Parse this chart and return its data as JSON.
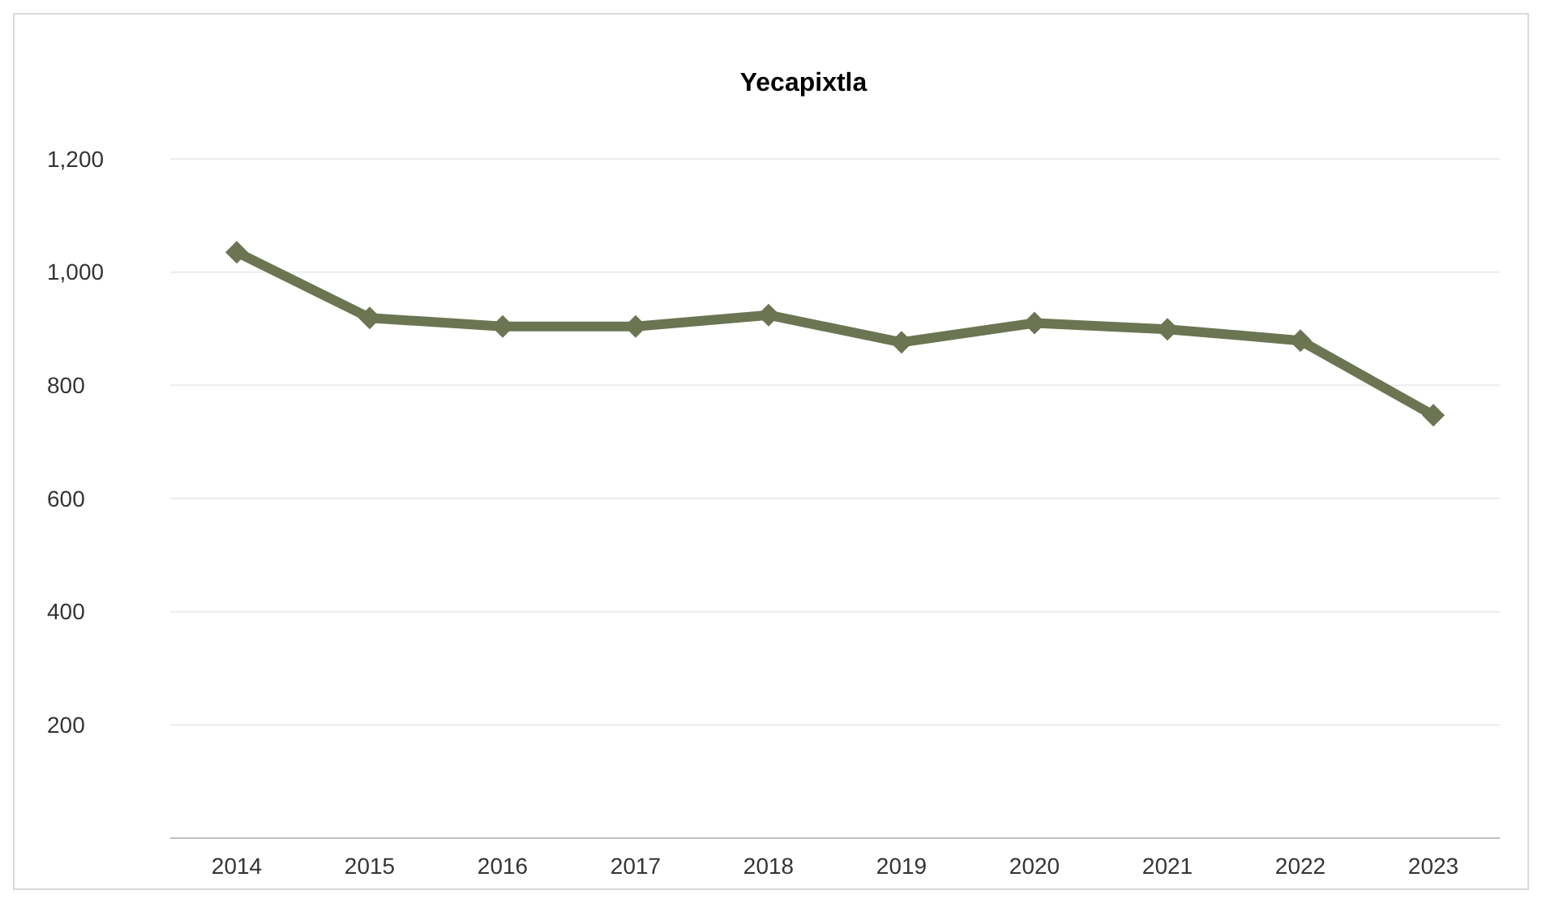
{
  "chart_data": {
    "type": "line",
    "title": "Yecapixtla",
    "categories": [
      "2014",
      "2015",
      "2016",
      "2017",
      "2018",
      "2019",
      "2020",
      "2021",
      "2022",
      "2023"
    ],
    "series": [
      {
        "color": "#6b7552",
        "values": [
          1035,
          919,
          904,
          904,
          924,
          876,
          910,
          899,
          879,
          747
        ]
      }
    ],
    "ylim": [
      0,
      1200
    ],
    "yticks": [
      {
        "value": 200,
        "label": "200"
      },
      {
        "value": 400,
        "label": "400"
      },
      {
        "value": 600,
        "label": "600"
      },
      {
        "value": 800,
        "label": "800"
      },
      {
        "value": 1000,
        "label": "1,000"
      },
      {
        "value": 1200,
        "label": "1,200"
      }
    ],
    "grid": "y",
    "marker": "diamond",
    "line_style": "solid"
  }
}
